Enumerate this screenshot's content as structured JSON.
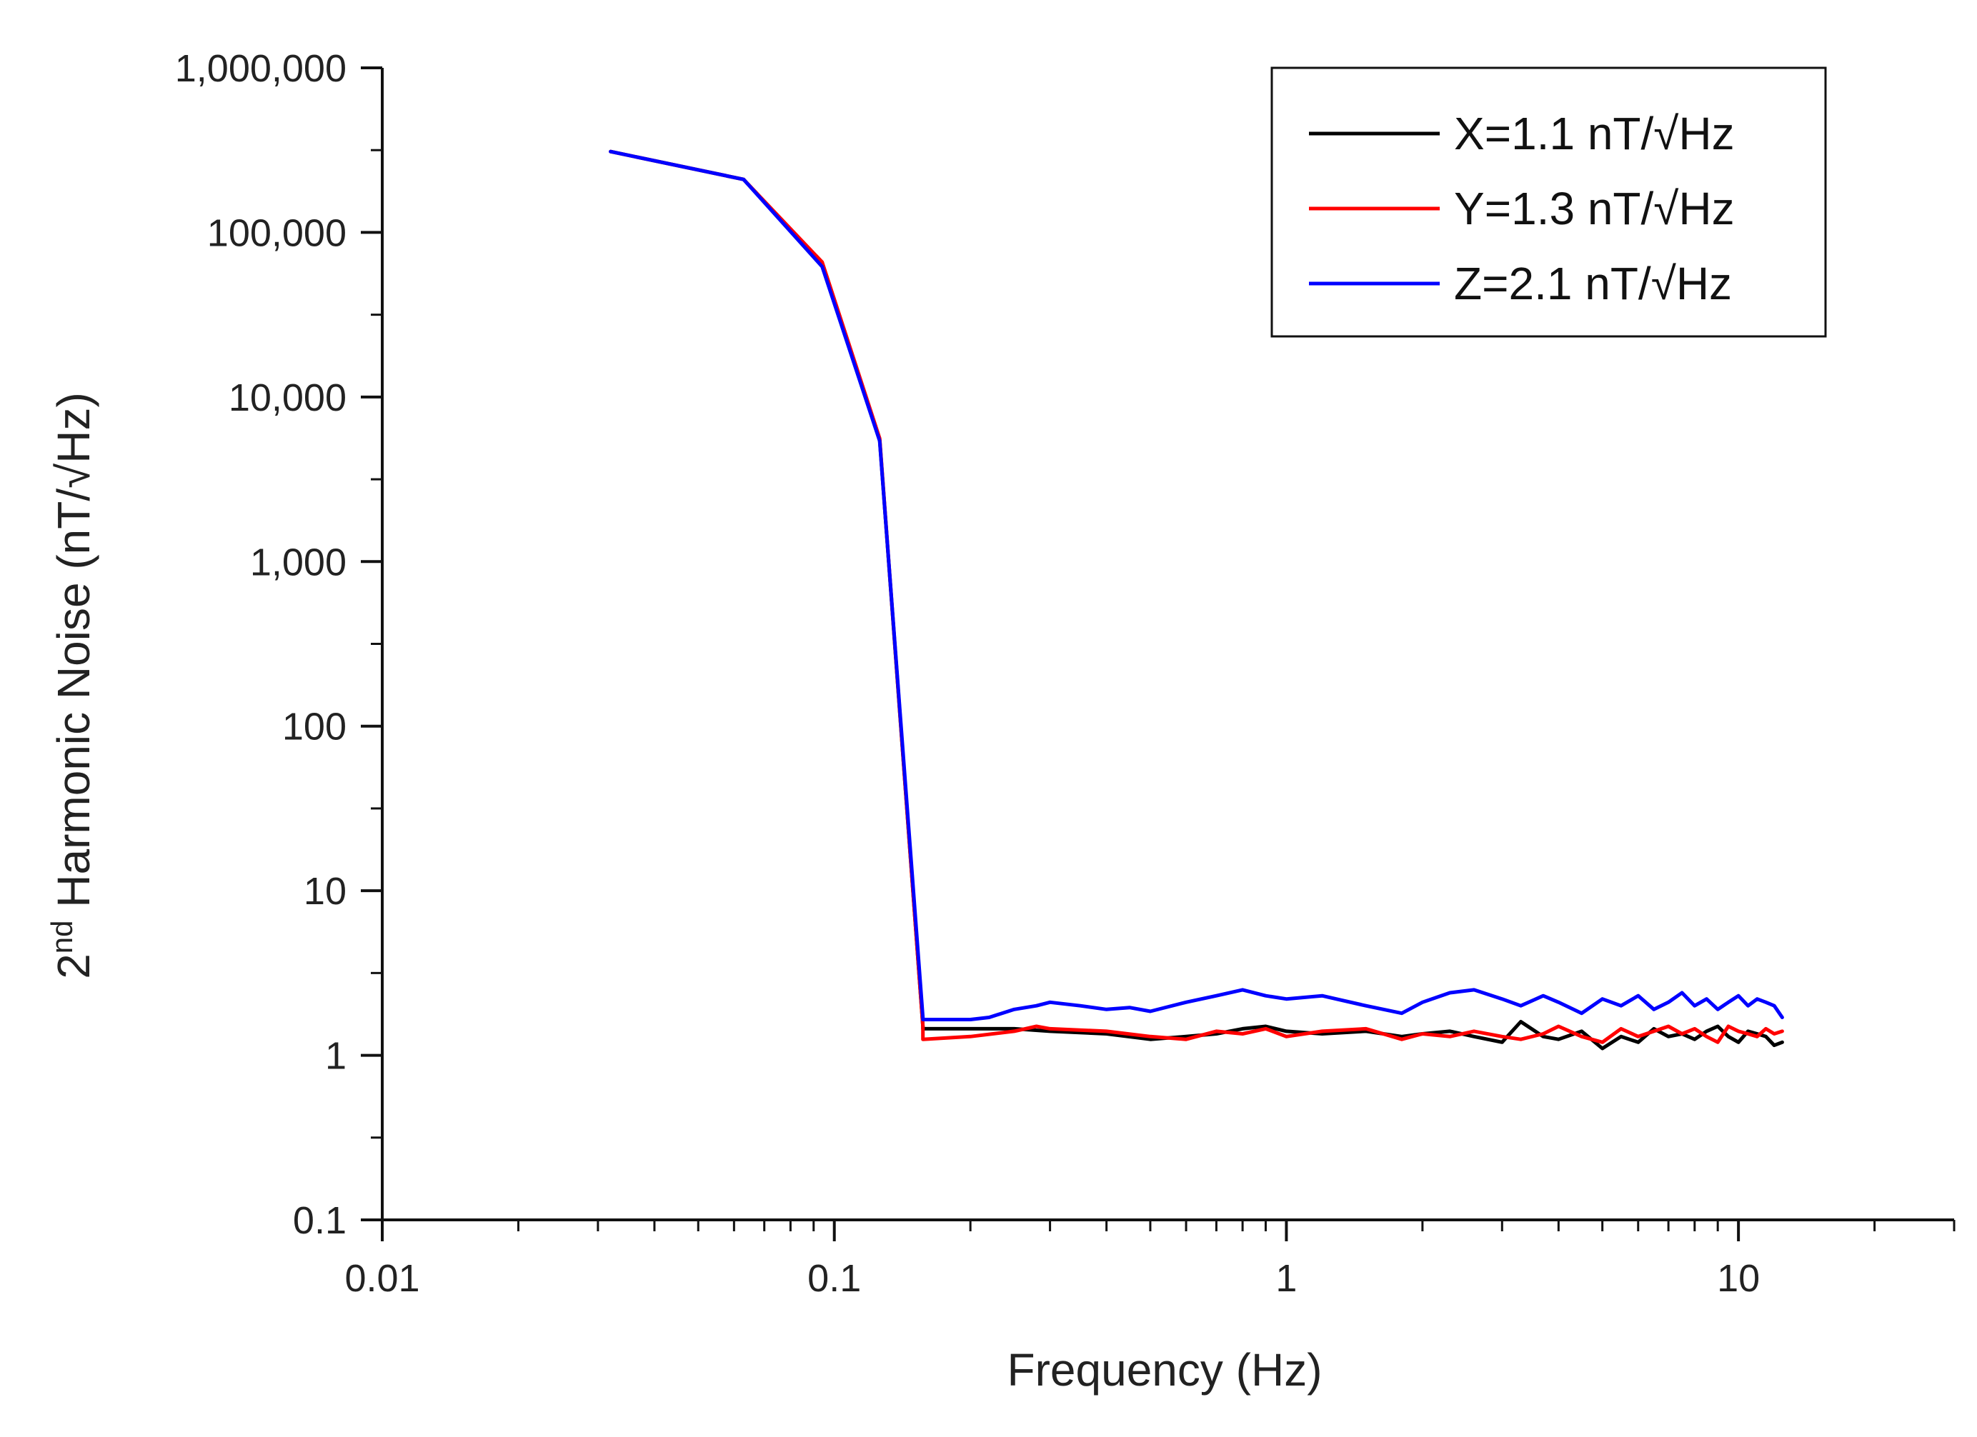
{
  "chart_data": {
    "type": "line",
    "title": "",
    "xlabel": "Frequency (Hz)",
    "ylabel": {
      "base": "2",
      "superscript": "nd",
      "rest": " Harmonic Noise (nT/√Hz)"
    },
    "xscale": "log",
    "yscale": "log",
    "xlim": [
      0.01,
      30
    ],
    "ylim": [
      0.1,
      1000000
    ],
    "grid": false,
    "legend_position": "top-right",
    "x_ticks": [
      {
        "value": 0.01,
        "label": "0.01"
      },
      {
        "value": 0.1,
        "label": "0.1"
      },
      {
        "value": 1,
        "label": "1"
      },
      {
        "value": 10,
        "label": "10"
      }
    ],
    "y_ticks": [
      {
        "value": 0.1,
        "label": "0.1"
      },
      {
        "value": 1,
        "label": "1"
      },
      {
        "value": 10,
        "label": "10"
      },
      {
        "value": 100,
        "label": "100"
      },
      {
        "value": 1000,
        "label": "1,000"
      },
      {
        "value": 10000,
        "label": "10,000"
      },
      {
        "value": 100000,
        "label": "100,000"
      },
      {
        "value": 1000000,
        "label": "1,000,000"
      }
    ],
    "series": [
      {
        "name": "X=1.1 nT/√Hz",
        "color": "#000000",
        "x": [
          0.032,
          0.063,
          0.094,
          0.126,
          0.157,
          0.157,
          0.2,
          0.25,
          0.3,
          0.4,
          0.5,
          0.6,
          0.7,
          0.8,
          0.9,
          1.0,
          1.2,
          1.5,
          1.8,
          2.0,
          2.3,
          2.6,
          3.0,
          3.3,
          3.7,
          4.0,
          4.5,
          5.0,
          5.5,
          6.0,
          6.5,
          7.0,
          7.5,
          8.0,
          8.5,
          9.0,
          9.5,
          10.0,
          10.5,
          11.0,
          11.5,
          12.0,
          12.5
        ],
        "values": [
          310000,
          210000,
          65000,
          5500,
          1.5,
          1.45,
          1.45,
          1.45,
          1.4,
          1.35,
          1.25,
          1.3,
          1.35,
          1.45,
          1.5,
          1.4,
          1.35,
          1.4,
          1.3,
          1.35,
          1.4,
          1.3,
          1.2,
          1.6,
          1.3,
          1.25,
          1.4,
          1.1,
          1.3,
          1.2,
          1.45,
          1.3,
          1.35,
          1.25,
          1.4,
          1.5,
          1.3,
          1.2,
          1.4,
          1.35,
          1.3,
          1.15,
          1.2
        ]
      },
      {
        "name": "Y=1.3 nT/√Hz",
        "color": "#ff0000",
        "x": [
          0.032,
          0.063,
          0.094,
          0.126,
          0.157,
          0.157,
          0.2,
          0.25,
          0.28,
          0.3,
          0.4,
          0.5,
          0.6,
          0.7,
          0.8,
          0.9,
          1.0,
          1.2,
          1.5,
          1.8,
          2.0,
          2.3,
          2.6,
          3.0,
          3.3,
          3.7,
          4.0,
          4.5,
          5.0,
          5.5,
          6.0,
          6.5,
          7.0,
          7.5,
          8.0,
          8.5,
          9.0,
          9.5,
          10.0,
          10.5,
          11.0,
          11.5,
          12.0,
          12.5
        ],
        "values": [
          310000,
          210000,
          66000,
          5600,
          1.5,
          1.25,
          1.3,
          1.4,
          1.5,
          1.45,
          1.4,
          1.3,
          1.25,
          1.4,
          1.35,
          1.45,
          1.3,
          1.4,
          1.45,
          1.25,
          1.35,
          1.3,
          1.4,
          1.3,
          1.25,
          1.35,
          1.5,
          1.3,
          1.2,
          1.45,
          1.3,
          1.4,
          1.5,
          1.35,
          1.45,
          1.3,
          1.2,
          1.5,
          1.4,
          1.35,
          1.3,
          1.45,
          1.35,
          1.4
        ]
      },
      {
        "name": "Z=2.1 nT/√Hz",
        "color": "#0000ff",
        "x": [
          0.032,
          0.063,
          0.094,
          0.126,
          0.157,
          0.157,
          0.2,
          0.22,
          0.25,
          0.28,
          0.3,
          0.35,
          0.4,
          0.45,
          0.5,
          0.6,
          0.7,
          0.8,
          0.9,
          1.0,
          1.2,
          1.5,
          1.8,
          2.0,
          2.3,
          2.6,
          3.0,
          3.3,
          3.7,
          4.0,
          4.5,
          5.0,
          5.5,
          6.0,
          6.5,
          7.0,
          7.5,
          8.0,
          8.5,
          9.0,
          9.5,
          10.0,
          10.5,
          11.0,
          11.5,
          12.0,
          12.5
        ],
        "values": [
          310000,
          210000,
          62000,
          5400,
          1.7,
          1.65,
          1.65,
          1.7,
          1.9,
          2.0,
          2.1,
          2.0,
          1.9,
          1.95,
          1.85,
          2.1,
          2.3,
          2.5,
          2.3,
          2.2,
          2.3,
          2.0,
          1.8,
          2.1,
          2.4,
          2.5,
          2.2,
          2.0,
          2.3,
          2.1,
          1.8,
          2.2,
          2.0,
          2.3,
          1.9,
          2.1,
          2.4,
          2.0,
          2.2,
          1.9,
          2.1,
          2.3,
          2.0,
          2.2,
          2.1,
          2.0,
          1.7
        ]
      }
    ]
  }
}
